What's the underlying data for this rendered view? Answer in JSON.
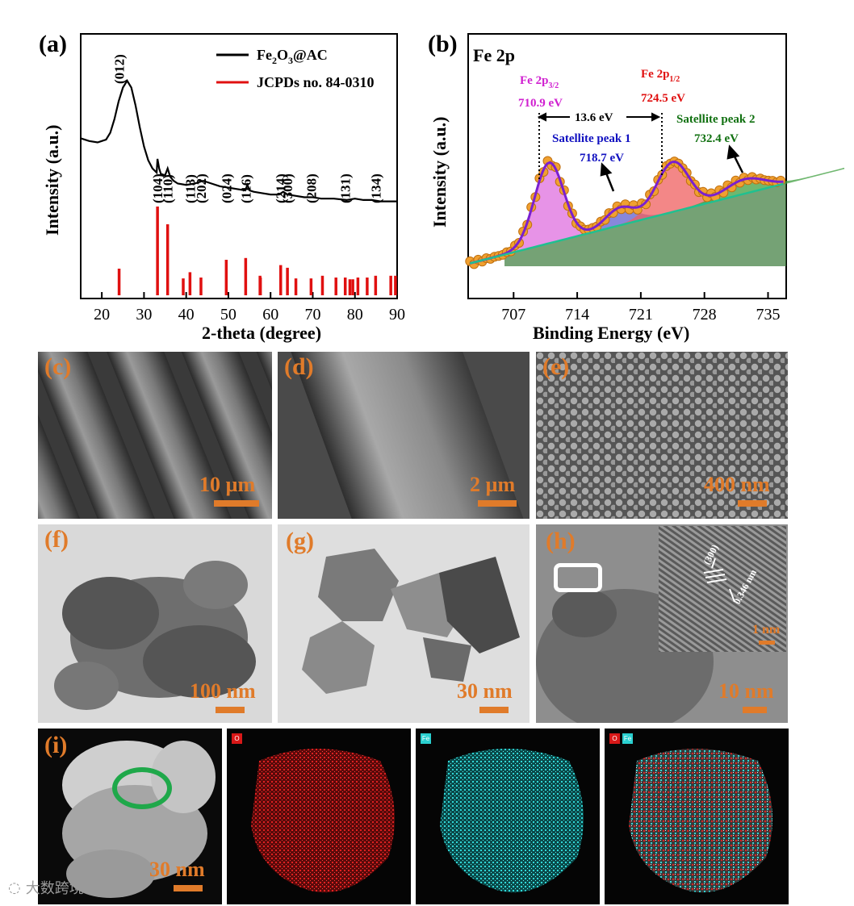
{
  "panels": {
    "a": "(a)",
    "b": "(b)",
    "c": "(c)",
    "d": "(d)",
    "e": "(e)",
    "f": "(f)",
    "g": "(g)",
    "h": "(h)",
    "i": "(i)"
  },
  "scale_bars": {
    "c": "10 µm",
    "d": "2 µm",
    "e": "400 nm",
    "f": "100 nm",
    "g": "30 nm",
    "h": "10 nm",
    "h_inset": "1 nm",
    "i": "30 nm"
  },
  "hrtem_inset": {
    "plane": "(300)",
    "spacing": "0.346 nm"
  },
  "eds_tags": {
    "o": "O",
    "fe": "Fe"
  },
  "watermark": "大数跨境",
  "colors": {
    "accent": "#e07b2a",
    "xrd_ref": "#e01010",
    "o_map": "#d81818",
    "fe_map": "#2ad0d0",
    "ring": "#1fa84a"
  },
  "chart_data": [
    {
      "type": "line",
      "panel": "(a)",
      "xlabel": "2-theta (degree)",
      "ylabel": "Intensity (a.u.)",
      "xlim": [
        15,
        90
      ],
      "xticks": [
        20,
        30,
        40,
        50,
        60,
        70,
        80,
        90
      ],
      "legend": [
        "Fe2O3@AC",
        "JCPDs no. 84-0310"
      ],
      "legend_position": "top-right",
      "series": [
        {
          "name": "Fe2O3@AC",
          "x": [
            15,
            17,
            19,
            21,
            22,
            23,
            24,
            25,
            26,
            27,
            28,
            29,
            30,
            31,
            32,
            33,
            33.2,
            33.6,
            34,
            35,
            35.6,
            36.2,
            37,
            38,
            40,
            42,
            44,
            46,
            48,
            50,
            52,
            54,
            54.5,
            55,
            56,
            58,
            60,
            62,
            63,
            64,
            66,
            68,
            70,
            72,
            75,
            78,
            80,
            82,
            84,
            86,
            88,
            90
          ],
          "y": [
            0.58,
            0.56,
            0.55,
            0.57,
            0.62,
            0.72,
            0.85,
            0.95,
            1.0,
            0.95,
            0.82,
            0.66,
            0.52,
            0.42,
            0.36,
            0.33,
            0.43,
            0.36,
            0.32,
            0.31,
            0.36,
            0.3,
            0.27,
            0.25,
            0.24,
            0.25,
            0.27,
            0.25,
            0.23,
            0.22,
            0.21,
            0.2,
            0.24,
            0.2,
            0.19,
            0.18,
            0.17,
            0.17,
            0.19,
            0.17,
            0.16,
            0.15,
            0.15,
            0.14,
            0.14,
            0.13,
            0.14,
            0.13,
            0.13,
            0.12,
            0.12,
            0.12
          ]
        },
        {
          "name": "JCPDs no. 84-0310",
          "x": [
            24.1,
            33.2,
            35.6,
            39.3,
            40.9,
            43.5,
            49.5,
            54.1,
            57.6,
            57.5,
            62.4,
            64.0,
            66.0,
            69.6,
            72.3,
            75.5,
            77.7,
            78.8,
            79.5,
            80.7,
            82.9,
            84.9,
            88.5,
            89.6
          ],
          "y": [
            0.3,
            1.0,
            0.8,
            0.19,
            0.26,
            0.2,
            0.4,
            0.42,
            0.2,
            0.22,
            0.34,
            0.31,
            0.19,
            0.19,
            0.22,
            0.2,
            0.2,
            0.18,
            0.18,
            0.2,
            0.2,
            0.22,
            0.22,
            0.22
          ]
        }
      ],
      "annotations": [
        {
          "label": "(012)",
          "x": 24.1
        },
        {
          "label": "(104)",
          "x": 33.2
        },
        {
          "label": "(110)",
          "x": 35.6
        },
        {
          "label": "(113)",
          "x": 40.9
        },
        {
          "label": "(202)",
          "x": 43.5
        },
        {
          "label": "(024)",
          "x": 49.5
        },
        {
          "label": "(116)",
          "x": 54.1
        },
        {
          "label": "(214)",
          "x": 62.4
        },
        {
          "label": "(300)",
          "x": 64.0
        },
        {
          "label": "(208)",
          "x": 69.6
        },
        {
          "label": "(131)",
          "x": 77.7
        },
        {
          "label": "(134)",
          "x": 84.9
        }
      ]
    },
    {
      "type": "line",
      "panel": "(b)",
      "title": "Fe 2p",
      "xlabel": "Binding Energy (eV)",
      "ylabel": "Intensity (a.u.)",
      "xlim": [
        702,
        737
      ],
      "xticks": [
        707,
        714,
        721,
        728,
        735
      ],
      "peaks": [
        {
          "name": "Fe 2p3/2",
          "value": "710.9 eV",
          "position": 710.9,
          "color": "#d020d0"
        },
        {
          "name": "Fe 2p1/2",
          "value": "724.5 eV",
          "position": 724.5,
          "color": "#e01010"
        },
        {
          "name": "Satellite peak 1",
          "value": "718.7 eV",
          "position": 718.7,
          "color": "#1010c0"
        },
        {
          "name": "Satellite peak 2",
          "value": "732.4 eV",
          "position": 732.4,
          "color": "#107010"
        }
      ],
      "splitting": "13.6 eV"
    }
  ]
}
